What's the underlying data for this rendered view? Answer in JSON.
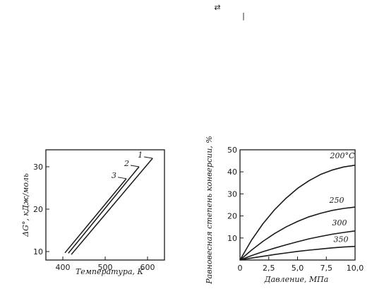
{
  "header": {
    "arrow_symbol": "⇄",
    "bar_symbol": "|"
  },
  "chart_data": [
    {
      "type": "line",
      "xlabel": "Температура, К",
      "ylabel": "ΔG°, кДж/моль",
      "xlim": [
        360,
        640
      ],
      "ylim": [
        8,
        34
      ],
      "xticks": [
        400,
        500,
        600
      ],
      "yticks": [
        10,
        20,
        30
      ],
      "grid": false,
      "series": [
        {
          "name": "1",
          "x": [
            420,
            612
          ],
          "y": [
            9.3,
            32.0
          ]
        },
        {
          "name": "2",
          "x": [
            413,
            580
          ],
          "y": [
            9.6,
            30.0
          ]
        },
        {
          "name": "3",
          "x": [
            405,
            550
          ],
          "y": [
            9.7,
            27.2
          ]
        }
      ]
    },
    {
      "type": "line",
      "xlabel": "Давление, МПа",
      "ylabel": "Равновесная степень конверсии, %",
      "xlim": [
        0,
        10
      ],
      "ylim": [
        0,
        50
      ],
      "xticks": [
        "0",
        "2,5",
        "5,0",
        "7,5",
        "10,0"
      ],
      "yticks": [
        "10",
        "20",
        "30",
        "40",
        "50"
      ],
      "grid": false,
      "series": [
        {
          "name": "200°С",
          "x": [
            0,
            1,
            2,
            3,
            4,
            5,
            6,
            7,
            8,
            9,
            10
          ],
          "y": [
            0,
            9.0,
            16.5,
            22.8,
            28.0,
            32.5,
            36.0,
            38.8,
            40.8,
            42.2,
            43.0
          ]
        },
        {
          "name": "250",
          "x": [
            0,
            1,
            2,
            3,
            4,
            5,
            6,
            7,
            8,
            9,
            10
          ],
          "y": [
            0,
            4.5,
            8.5,
            12.0,
            15.0,
            17.5,
            19.6,
            21.2,
            22.5,
            23.4,
            24.0
          ]
        },
        {
          "name": "300",
          "x": [
            0,
            1,
            2,
            3,
            4,
            5,
            6,
            7,
            8,
            9,
            10
          ],
          "y": [
            0,
            2.0,
            3.8,
            5.4,
            6.9,
            8.3,
            9.6,
            10.7,
            11.7,
            12.5,
            13.2
          ]
        },
        {
          "name": "350",
          "x": [
            0,
            1,
            2,
            3,
            4,
            5,
            6,
            7,
            8,
            9,
            10
          ],
          "y": [
            0,
            0.9,
            1.7,
            2.5,
            3.2,
            3.9,
            4.5,
            5.0,
            5.5,
            5.9,
            6.2
          ]
        }
      ]
    }
  ]
}
